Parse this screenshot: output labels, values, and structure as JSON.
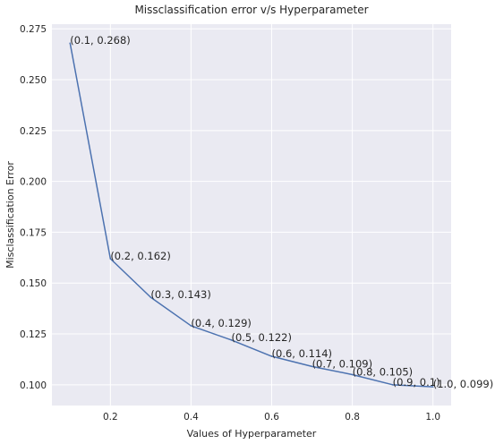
{
  "chart_data": {
    "type": "line",
    "title": "Missclassification error v/s Hyperparameter",
    "xlabel": "Values of Hyperparameter",
    "ylabel": "Misclassification Error",
    "x": [
      0.1,
      0.2,
      0.3,
      0.4,
      0.5,
      0.6,
      0.7,
      0.8,
      0.9,
      1.0
    ],
    "series": [
      {
        "values": [
          0.268,
          0.162,
          0.143,
          0.129,
          0.122,
          0.114,
          0.109,
          0.105,
          0.1,
          0.099
        ],
        "color": "#4c72b0"
      }
    ],
    "data_labels": [
      "(0.1, 0.268)",
      "(0.2, 0.162)",
      "(0.3, 0.143)",
      "(0.4, 0.129)",
      "(0.5, 0.122)",
      "(0.6, 0.114)",
      "(0.7, 0.109)",
      "(0.8, 0.105)",
      "(0.9, 0.1)",
      "(1.0, 0.099)"
    ],
    "xlim": [
      0.055,
      1.045
    ],
    "ylim": [
      0.0898,
      0.2773
    ],
    "xticks": [
      0.2,
      0.4,
      0.6,
      0.8,
      1.0
    ],
    "xtick_labels": [
      "0.2",
      "0.4",
      "0.6",
      "0.8",
      "1.0"
    ],
    "yticks": [
      0.1,
      0.125,
      0.15,
      0.175,
      0.2,
      0.225,
      0.25,
      0.275
    ],
    "ytick_labels": [
      "0.100",
      "0.125",
      "0.150",
      "0.175",
      "0.200",
      "0.225",
      "0.250",
      "0.275"
    ],
    "grid": true,
    "background_color": "#eaeaf2",
    "grid_color": "#ffffff"
  }
}
